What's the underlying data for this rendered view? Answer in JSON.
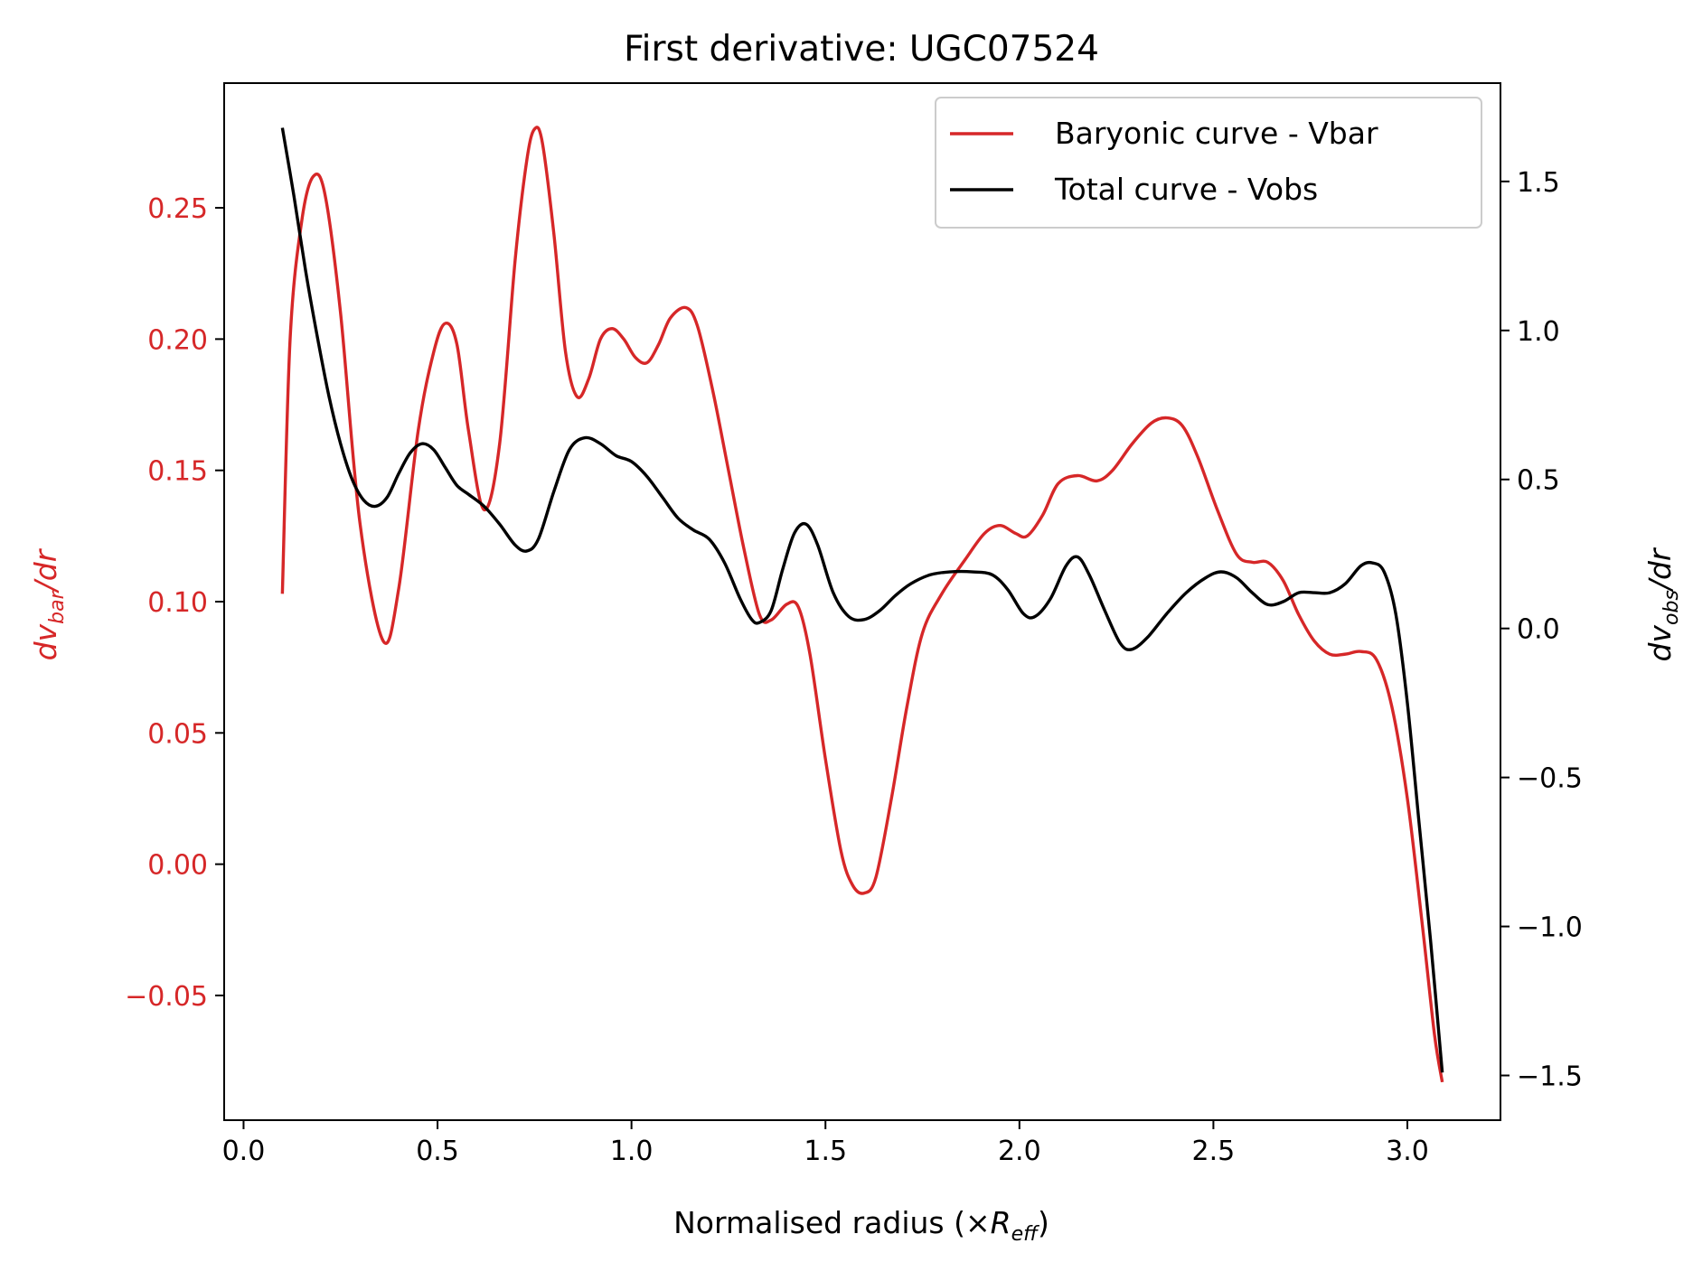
{
  "chart_data": {
    "type": "line",
    "title": "First derivative: UGC07524",
    "xlabel": {
      "main": "Normalised radius (×",
      "symbol": "R",
      "sub": "eff",
      "close": ")"
    },
    "ylabel_left": {
      "symbol": "dv",
      "sub": "bar",
      "tail": "/dr"
    },
    "ylabel_right": {
      "symbol": "dv",
      "sub": "obs",
      "tail": "/dr"
    },
    "xlim": [
      -0.05,
      3.24
    ],
    "ylim_left": [
      -0.0975,
      0.2975
    ],
    "ylim_right": [
      -1.65,
      1.83
    ],
    "x_ticks": [
      0.0,
      0.5,
      1.0,
      1.5,
      2.0,
      2.5,
      3.0
    ],
    "x_tick_labels": [
      "0.0",
      "0.5",
      "1.0",
      "1.5",
      "2.0",
      "2.5",
      "3.0"
    ],
    "y_left_ticks": [
      -0.05,
      0.0,
      0.05,
      0.1,
      0.15,
      0.2,
      0.25
    ],
    "y_left_tick_labels": [
      "−0.05",
      "0.00",
      "0.05",
      "0.10",
      "0.15",
      "0.20",
      "0.25"
    ],
    "y_right_ticks": [
      -1.5,
      -1.0,
      -0.5,
      0.0,
      0.5,
      1.0,
      1.5
    ],
    "y_right_tick_labels": [
      "−1.5",
      "−1.0",
      "−0.5",
      "0.0",
      "0.5",
      "1.0",
      "1.5"
    ],
    "legend_position": "top-right",
    "series": [
      {
        "name": "Baryonic curve - Vbar",
        "axis": "left",
        "color": "#d62728",
        "points": [
          [
            0.1,
            0.103
          ],
          [
            0.12,
            0.2
          ],
          [
            0.15,
            0.245
          ],
          [
            0.18,
            0.262
          ],
          [
            0.21,
            0.255
          ],
          [
            0.25,
            0.21
          ],
          [
            0.3,
            0.13
          ],
          [
            0.36,
            0.085
          ],
          [
            0.4,
            0.105
          ],
          [
            0.45,
            0.165
          ],
          [
            0.49,
            0.195
          ],
          [
            0.52,
            0.206
          ],
          [
            0.55,
            0.198
          ],
          [
            0.58,
            0.165
          ],
          [
            0.62,
            0.135
          ],
          [
            0.66,
            0.16
          ],
          [
            0.7,
            0.23
          ],
          [
            0.73,
            0.268
          ],
          [
            0.75,
            0.28
          ],
          [
            0.77,
            0.275
          ],
          [
            0.8,
            0.24
          ],
          [
            0.83,
            0.195
          ],
          [
            0.86,
            0.178
          ],
          [
            0.89,
            0.185
          ],
          [
            0.92,
            0.2
          ],
          [
            0.95,
            0.204
          ],
          [
            0.98,
            0.2
          ],
          [
            1.01,
            0.193
          ],
          [
            1.04,
            0.191
          ],
          [
            1.07,
            0.198
          ],
          [
            1.1,
            0.208
          ],
          [
            1.14,
            0.212
          ],
          [
            1.17,
            0.205
          ],
          [
            1.21,
            0.18
          ],
          [
            1.25,
            0.15
          ],
          [
            1.29,
            0.12
          ],
          [
            1.33,
            0.095
          ],
          [
            1.36,
            0.093
          ],
          [
            1.4,
            0.099
          ],
          [
            1.43,
            0.098
          ],
          [
            1.46,
            0.08
          ],
          [
            1.5,
            0.04
          ],
          [
            1.54,
            0.005
          ],
          [
            1.57,
            -0.008
          ],
          [
            1.6,
            -0.011
          ],
          [
            1.63,
            -0.005
          ],
          [
            1.67,
            0.025
          ],
          [
            1.71,
            0.06
          ],
          [
            1.75,
            0.088
          ],
          [
            1.8,
            0.103
          ],
          [
            1.86,
            0.116
          ],
          [
            1.91,
            0.126
          ],
          [
            1.95,
            0.129
          ],
          [
            1.99,
            0.126
          ],
          [
            2.02,
            0.125
          ],
          [
            2.06,
            0.133
          ],
          [
            2.1,
            0.145
          ],
          [
            2.15,
            0.148
          ],
          [
            2.2,
            0.146
          ],
          [
            2.24,
            0.15
          ],
          [
            2.29,
            0.16
          ],
          [
            2.34,
            0.168
          ],
          [
            2.38,
            0.17
          ],
          [
            2.42,
            0.167
          ],
          [
            2.46,
            0.155
          ],
          [
            2.51,
            0.135
          ],
          [
            2.56,
            0.118
          ],
          [
            2.6,
            0.115
          ],
          [
            2.64,
            0.115
          ],
          [
            2.68,
            0.108
          ],
          [
            2.72,
            0.095
          ],
          [
            2.76,
            0.085
          ],
          [
            2.8,
            0.08
          ],
          [
            2.84,
            0.08
          ],
          [
            2.88,
            0.081
          ],
          [
            2.92,
            0.078
          ],
          [
            2.96,
            0.06
          ],
          [
            3.0,
            0.025
          ],
          [
            3.04,
            -0.025
          ],
          [
            3.07,
            -0.065
          ],
          [
            3.09,
            -0.083
          ]
        ]
      },
      {
        "name": "Total curve - Vobs",
        "axis": "right",
        "color": "#000000",
        "points": [
          [
            0.1,
            1.68
          ],
          [
            0.13,
            1.45
          ],
          [
            0.16,
            1.2
          ],
          [
            0.19,
            0.98
          ],
          [
            0.22,
            0.78
          ],
          [
            0.25,
            0.62
          ],
          [
            0.28,
            0.5
          ],
          [
            0.31,
            0.43
          ],
          [
            0.34,
            0.41
          ],
          [
            0.37,
            0.44
          ],
          [
            0.4,
            0.52
          ],
          [
            0.43,
            0.59
          ],
          [
            0.46,
            0.62
          ],
          [
            0.49,
            0.6
          ],
          [
            0.52,
            0.54
          ],
          [
            0.55,
            0.48
          ],
          [
            0.58,
            0.45
          ],
          [
            0.62,
            0.41
          ],
          [
            0.66,
            0.35
          ],
          [
            0.7,
            0.28
          ],
          [
            0.73,
            0.26
          ],
          [
            0.76,
            0.3
          ],
          [
            0.8,
            0.46
          ],
          [
            0.84,
            0.6
          ],
          [
            0.88,
            0.64
          ],
          [
            0.92,
            0.62
          ],
          [
            0.96,
            0.58
          ],
          [
            1.0,
            0.56
          ],
          [
            1.04,
            0.51
          ],
          [
            1.08,
            0.44
          ],
          [
            1.12,
            0.37
          ],
          [
            1.16,
            0.33
          ],
          [
            1.2,
            0.3
          ],
          [
            1.24,
            0.22
          ],
          [
            1.28,
            0.1
          ],
          [
            1.31,
            0.03
          ],
          [
            1.33,
            0.02
          ],
          [
            1.36,
            0.06
          ],
          [
            1.39,
            0.2
          ],
          [
            1.42,
            0.32
          ],
          [
            1.45,
            0.35
          ],
          [
            1.48,
            0.28
          ],
          [
            1.52,
            0.12
          ],
          [
            1.56,
            0.04
          ],
          [
            1.6,
            0.03
          ],
          [
            1.64,
            0.06
          ],
          [
            1.68,
            0.11
          ],
          [
            1.72,
            0.15
          ],
          [
            1.77,
            0.18
          ],
          [
            1.82,
            0.19
          ],
          [
            1.88,
            0.19
          ],
          [
            1.93,
            0.18
          ],
          [
            1.97,
            0.13
          ],
          [
            2.01,
            0.05
          ],
          [
            2.04,
            0.04
          ],
          [
            2.08,
            0.1
          ],
          [
            2.12,
            0.21
          ],
          [
            2.15,
            0.24
          ],
          [
            2.18,
            0.18
          ],
          [
            2.22,
            0.06
          ],
          [
            2.26,
            -0.05
          ],
          [
            2.29,
            -0.07
          ],
          [
            2.33,
            -0.03
          ],
          [
            2.38,
            0.05
          ],
          [
            2.43,
            0.12
          ],
          [
            2.48,
            0.17
          ],
          [
            2.52,
            0.19
          ],
          [
            2.56,
            0.17
          ],
          [
            2.6,
            0.12
          ],
          [
            2.64,
            0.08
          ],
          [
            2.68,
            0.09
          ],
          [
            2.72,
            0.12
          ],
          [
            2.76,
            0.12
          ],
          [
            2.8,
            0.12
          ],
          [
            2.84,
            0.15
          ],
          [
            2.88,
            0.21
          ],
          [
            2.91,
            0.22
          ],
          [
            2.94,
            0.19
          ],
          [
            2.97,
            0.05
          ],
          [
            3.0,
            -0.25
          ],
          [
            3.03,
            -0.65
          ],
          [
            3.06,
            -1.05
          ],
          [
            3.09,
            -1.49
          ]
        ]
      }
    ]
  }
}
